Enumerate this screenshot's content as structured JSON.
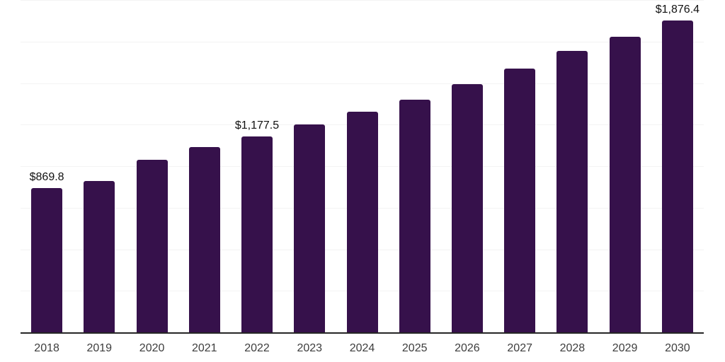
{
  "chart_data": {
    "type": "bar",
    "title": "",
    "xlabel": "",
    "ylabel": "",
    "categories": [
      "2018",
      "2019",
      "2020",
      "2021",
      "2022",
      "2023",
      "2024",
      "2025",
      "2026",
      "2027",
      "2028",
      "2029",
      "2030"
    ],
    "values": [
      869.8,
      912,
      1038,
      1113,
      1177.5,
      1250,
      1327,
      1401,
      1495,
      1588,
      1692,
      1780,
      1876.4
    ],
    "value_labels": [
      {
        "category": "2018",
        "index": 0,
        "text": "$869.8"
      },
      {
        "category": "2022",
        "index": 4,
        "text": "$1,177.5"
      },
      {
        "category": "2030",
        "index": 12,
        "text": "$1,876.4"
      }
    ],
    "ylim": [
      0,
      2000
    ],
    "gridline_interval": 250,
    "grid": true,
    "legend": false,
    "bar_color": "#36114b",
    "gridline_color": "#f3f3f3",
    "axis_line_color": "#262626",
    "tick_label_color": "#3d3d3d",
    "data_label_color": "#111111",
    "background_color": "#ffffff"
  }
}
